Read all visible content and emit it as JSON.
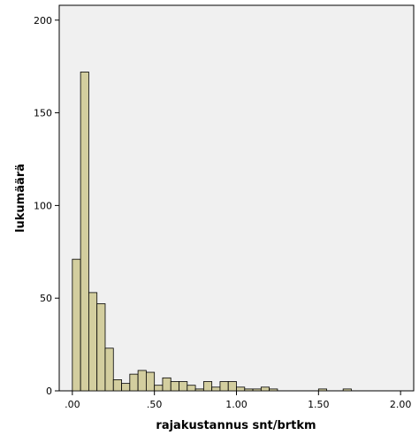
{
  "chart_data": {
    "type": "bar",
    "title": "",
    "xlabel": "rajakustannus snt/brtkm",
    "ylabel": "lukumäärä",
    "xlim": [
      -0.08,
      2.08
    ],
    "ylim": [
      0,
      208
    ],
    "x_ticks": [
      ".00",
      ".50",
      "1.00",
      "1.50",
      "2.00"
    ],
    "x_tick_values": [
      0,
      0.5,
      1.0,
      1.5,
      2.0
    ],
    "y_ticks": [
      "0",
      "50",
      "100",
      "150",
      "200"
    ],
    "y_tick_values": [
      0,
      50,
      100,
      150,
      200
    ],
    "grid": false,
    "bin_width": 0.05,
    "bins": [
      {
        "start": 0.0,
        "end": 0.05,
        "count": 71
      },
      {
        "start": 0.05,
        "end": 0.1,
        "count": 172
      },
      {
        "start": 0.1,
        "end": 0.15,
        "count": 53
      },
      {
        "start": 0.15,
        "end": 0.2,
        "count": 47
      },
      {
        "start": 0.2,
        "end": 0.25,
        "count": 23
      },
      {
        "start": 0.25,
        "end": 0.3,
        "count": 6
      },
      {
        "start": 0.3,
        "end": 0.35,
        "count": 4
      },
      {
        "start": 0.35,
        "end": 0.4,
        "count": 9
      },
      {
        "start": 0.4,
        "end": 0.45,
        "count": 11
      },
      {
        "start": 0.45,
        "end": 0.5,
        "count": 10
      },
      {
        "start": 0.5,
        "end": 0.55,
        "count": 3
      },
      {
        "start": 0.55,
        "end": 0.6,
        "count": 7
      },
      {
        "start": 0.6,
        "end": 0.65,
        "count": 5
      },
      {
        "start": 0.65,
        "end": 0.7,
        "count": 5
      },
      {
        "start": 0.7,
        "end": 0.75,
        "count": 3
      },
      {
        "start": 0.75,
        "end": 0.8,
        "count": 1
      },
      {
        "start": 0.8,
        "end": 0.85,
        "count": 5
      },
      {
        "start": 0.85,
        "end": 0.9,
        "count": 2
      },
      {
        "start": 0.9,
        "end": 0.95,
        "count": 5
      },
      {
        "start": 0.95,
        "end": 1.0,
        "count": 5
      },
      {
        "start": 1.0,
        "end": 1.05,
        "count": 2
      },
      {
        "start": 1.05,
        "end": 1.1,
        "count": 1
      },
      {
        "start": 1.1,
        "end": 1.15,
        "count": 1
      },
      {
        "start": 1.15,
        "end": 1.2,
        "count": 2
      },
      {
        "start": 1.2,
        "end": 1.25,
        "count": 1
      },
      {
        "start": 1.5,
        "end": 1.55,
        "count": 1
      },
      {
        "start": 1.65,
        "end": 1.7,
        "count": 1
      }
    ],
    "colors": {
      "bar_fill": "#d3ce9f",
      "bar_stroke": "#000000",
      "plot_background": "#f0f0f0",
      "axis": "#000000"
    }
  }
}
